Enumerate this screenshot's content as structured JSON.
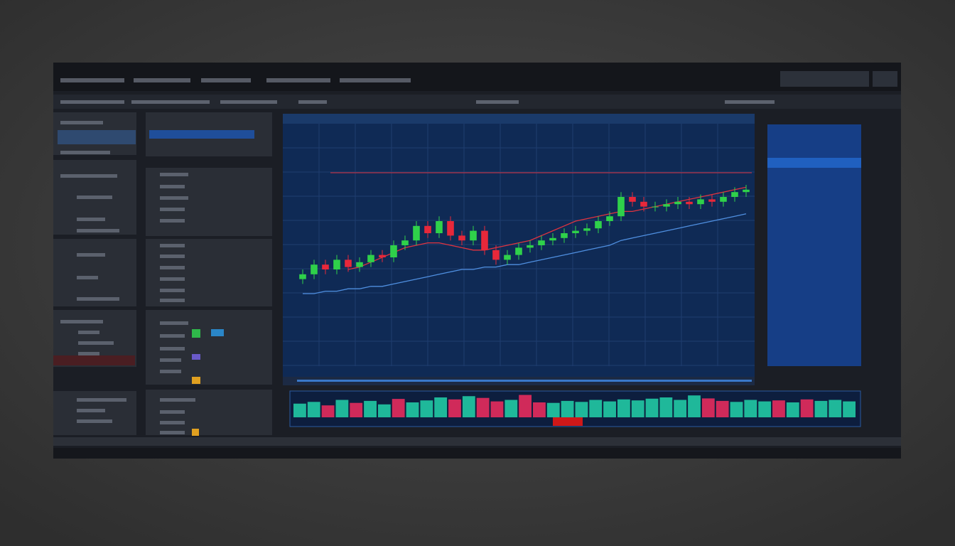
{
  "chart_data": {
    "type": "candlestick",
    "open": [
      36,
      38,
      42,
      40,
      44,
      41,
      43,
      46,
      45,
      50,
      52,
      58,
      55,
      60,
      54,
      52,
      56,
      48,
      44,
      46,
      49,
      50,
      52,
      53,
      55,
      56,
      57,
      60,
      62,
      70,
      68,
      66,
      66,
      67,
      68,
      67,
      69,
      68,
      70,
      72
    ],
    "high": [
      40,
      44,
      44,
      46,
      46,
      45,
      48,
      48,
      52,
      54,
      60,
      60,
      62,
      62,
      56,
      58,
      58,
      50,
      48,
      51,
      52,
      54,
      55,
      57,
      58,
      59,
      62,
      64,
      72,
      72,
      70,
      68,
      69,
      70,
      70,
      71,
      71,
      72,
      74,
      75
    ],
    "low": [
      34,
      36,
      38,
      38,
      39,
      39,
      41,
      43,
      43,
      48,
      50,
      53,
      53,
      52,
      50,
      50,
      46,
      42,
      42,
      44,
      47,
      48,
      50,
      51,
      53,
      54,
      55,
      58,
      60,
      66,
      64,
      64,
      64,
      65,
      65,
      65,
      66,
      66,
      68,
      70
    ],
    "close": [
      38,
      42,
      40,
      44,
      41,
      43,
      46,
      45,
      50,
      52,
      58,
      55,
      60,
      54,
      52,
      56,
      48,
      44,
      46,
      49,
      50,
      52,
      53,
      55,
      56,
      57,
      60,
      62,
      70,
      68,
      66,
      66,
      67,
      68,
      67,
      69,
      68,
      70,
      72,
      73
    ],
    "up_color": "#2fd14a",
    "down_color": "#e8283a",
    "ylim": [
      0,
      100
    ],
    "hline": 80,
    "hline_color": "#d8303a",
    "series": [
      {
        "color": "#e0333f",
        "values": [
          null,
          null,
          null,
          null,
          40,
          41,
          43,
          45,
          47,
          49,
          50,
          51,
          51,
          50,
          49,
          48,
          48,
          49,
          50,
          51,
          52,
          54,
          56,
          58,
          60,
          61,
          62,
          63,
          64,
          64,
          65,
          66,
          67,
          68,
          69,
          70,
          71,
          72,
          73,
          74
        ]
      },
      {
        "color": "#4f8fe0",
        "values": [
          30,
          30,
          31,
          31,
          32,
          32,
          33,
          33,
          34,
          35,
          36,
          37,
          38,
          39,
          40,
          40,
          41,
          41,
          42,
          42,
          43,
          44,
          45,
          46,
          47,
          48,
          49,
          50,
          52,
          53,
          54,
          55,
          56,
          57,
          58,
          59,
          60,
          61,
          62,
          63
        ]
      }
    ],
    "volume": [
      55,
      62,
      48,
      70,
      58,
      66,
      52,
      74,
      60,
      68,
      80,
      72,
      85,
      78,
      64,
      70,
      90,
      60,
      58,
      66,
      62,
      70,
      64,
      72,
      68,
      75,
      80,
      70,
      88,
      76,
      66,
      62,
      70,
      64,
      68,
      60,
      72,
      66,
      70,
      64
    ],
    "volume_ylim": [
      0,
      100
    ]
  }
}
